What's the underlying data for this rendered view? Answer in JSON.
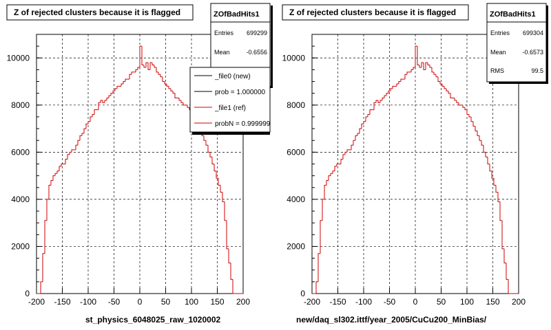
{
  "chart_data": [
    {
      "type": "histogram",
      "title": "Z of rejected clusters  because it is flagged",
      "xlabel": "st_physics_6048025_raw_1020002",
      "xlim": [
        -200,
        200
      ],
      "ylim": [
        0,
        11000
      ],
      "xticks": [
        -200,
        -150,
        -100,
        -50,
        0,
        50,
        100,
        150,
        200
      ],
      "yticks": [
        0,
        2000,
        4000,
        6000,
        8000,
        10000
      ],
      "grid": true,
      "stats": {
        "name": "ZOfBadHits1",
        "rows": [
          {
            "label": "Entries",
            "value": "699299"
          },
          {
            "label": "Mean",
            "value": "-0.6556"
          }
        ]
      },
      "legend": {
        "placement": "top-right",
        "entries": [
          {
            "label": "_file0 (new)",
            "color": "#000000"
          },
          {
            "label": "prob = 1.000000",
            "color": "#000000"
          },
          {
            "label": "_file1 (ref)",
            "color": "#cc0000"
          },
          {
            "label": "probN = 0.999999",
            "color": "#cc0000"
          }
        ]
      }
    },
    {
      "type": "histogram",
      "title": "Z of rejected clusters  because it is flagged",
      "xlabel": "new/daq_sl302.ittf/year_2005/CuCu200_MinBias/",
      "xlim": [
        -200,
        200
      ],
      "ylim": [
        0,
        11000
      ],
      "xticks": [
        -200,
        -150,
        -100,
        -50,
        0,
        50,
        100,
        150,
        200
      ],
      "yticks": [
        0,
        2000,
        4000,
        6000,
        8000,
        10000
      ],
      "grid": true,
      "stats": {
        "name": "ZOfBadHits1",
        "rows": [
          {
            "label": "Entries",
            "value": "699304"
          },
          {
            "label": "Mean",
            "value": "-0.6573"
          },
          {
            "label": "RMS",
            "value": "99.5"
          }
        ]
      }
    }
  ],
  "histogram": {
    "bin_edges_start": -200,
    "bin_width": 4,
    "line_color": "#cc0000",
    "values": [
      0,
      0,
      500,
      1700,
      3100,
      4000,
      4600,
      4800,
      5000,
      5100,
      5200,
      5400,
      5500,
      5500,
      5700,
      5900,
      6000,
      6100,
      6100,
      6300,
      6500,
      6700,
      6800,
      7000,
      7200,
      7300,
      7500,
      7600,
      7800,
      7800,
      8100,
      8200,
      8100,
      8200,
      8300,
      8400,
      8500,
      8600,
      8700,
      8800,
      8800,
      8900,
      9000,
      9100,
      9100,
      9300,
      9400,
      9400,
      9500,
      9600,
      10500,
      9700,
      9600,
      9800,
      9500,
      9800,
      9700,
      9600,
      9400,
      9300,
      9200,
      9000,
      8900,
      8800,
      8700,
      8600,
      8500,
      8300,
      8300,
      8200,
      8100,
      8000,
      8000,
      7900,
      7800,
      7600,
      7500,
      7300,
      7100,
      6900,
      6700,
      6500,
      6300,
      6000,
      5800,
      5500,
      5200,
      4900,
      4600,
      4300,
      3900,
      3100,
      1900,
      1300,
      600,
      0,
      0,
      0,
      0,
      0
    ]
  }
}
